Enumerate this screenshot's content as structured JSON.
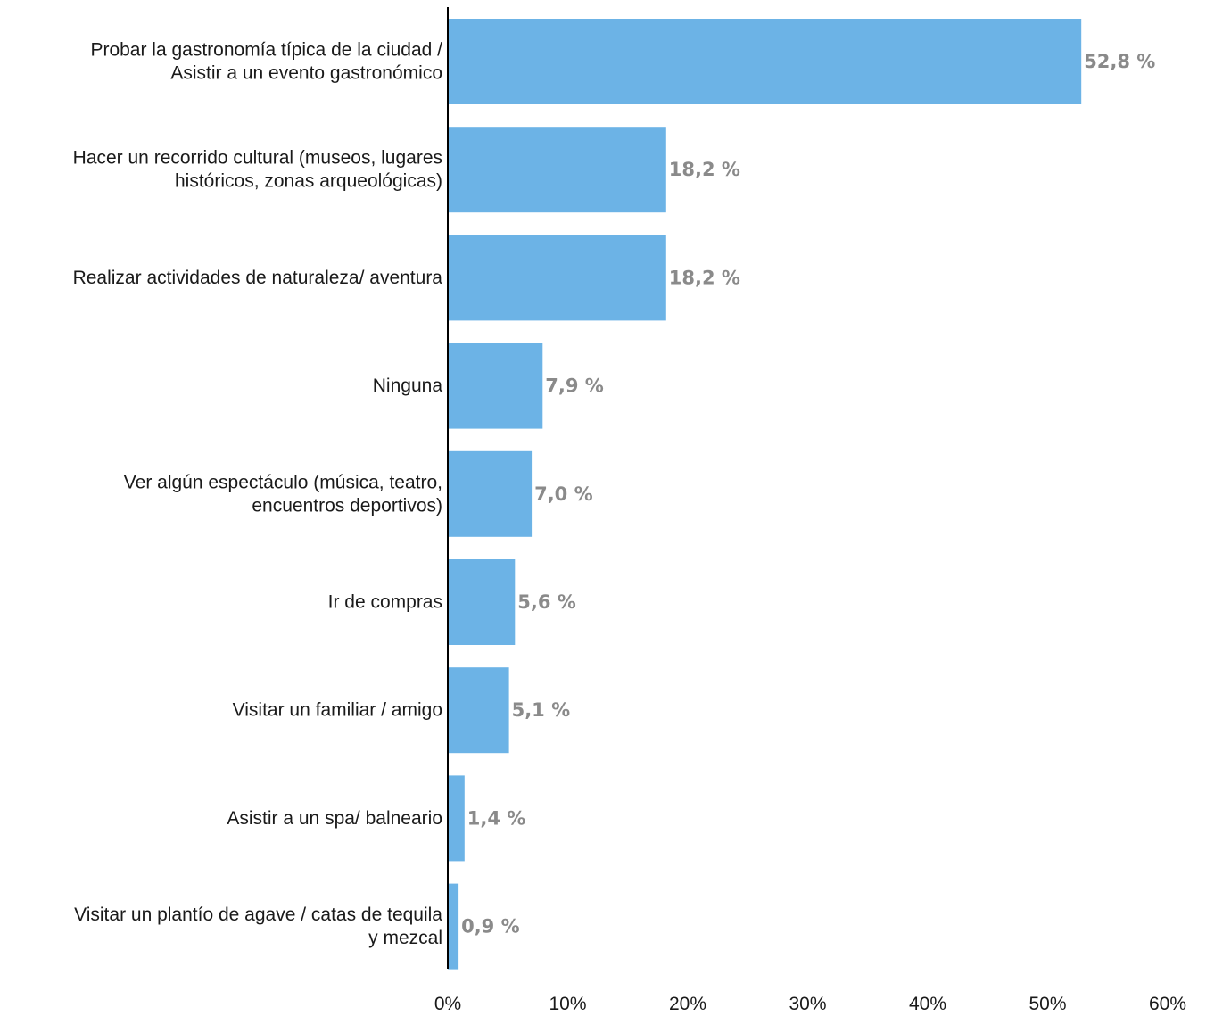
{
  "chart_data": {
    "type": "bar",
    "orientation": "horizontal",
    "bar_color": "#6cb3e6",
    "value_label_color": "#8a8a8a",
    "categories": [
      [
        "Probar la gastronomía típica de la ciudad /",
        "Asistir a un evento gastronómico"
      ],
      [
        "Hacer un recorrido cultural (museos, lugares",
        "históricos, zonas arqueológicas)"
      ],
      [
        "Realizar actividades de naturaleza/ aventura"
      ],
      [
        "Ninguna"
      ],
      [
        "Ver algún espectáculo (música, teatro,",
        "encuentros deportivos)"
      ],
      [
        "Ir de compras"
      ],
      [
        "Visitar un familiar / amigo"
      ],
      [
        "Asistir a un spa/ balneario"
      ],
      [
        "Visitar un plantío de agave / catas de tequila",
        "y mezcal"
      ]
    ],
    "values": [
      52.8,
      18.2,
      18.2,
      7.9,
      7.0,
      5.6,
      5.1,
      1.4,
      0.9
    ],
    "value_labels": [
      "52,8 %",
      "18,2 %",
      "18,2 %",
      "7,9 %",
      "7,0 %",
      "5,6 %",
      "5,1 %",
      "1,4 %",
      "0,9 %"
    ],
    "xlim": [
      0,
      60
    ],
    "xticks": [
      0,
      10,
      20,
      30,
      40,
      50,
      60
    ],
    "xtick_labels": [
      "0%",
      "10%",
      "20%",
      "30%",
      "40%",
      "50%",
      "60%"
    ],
    "grid": false,
    "legend": "none"
  }
}
